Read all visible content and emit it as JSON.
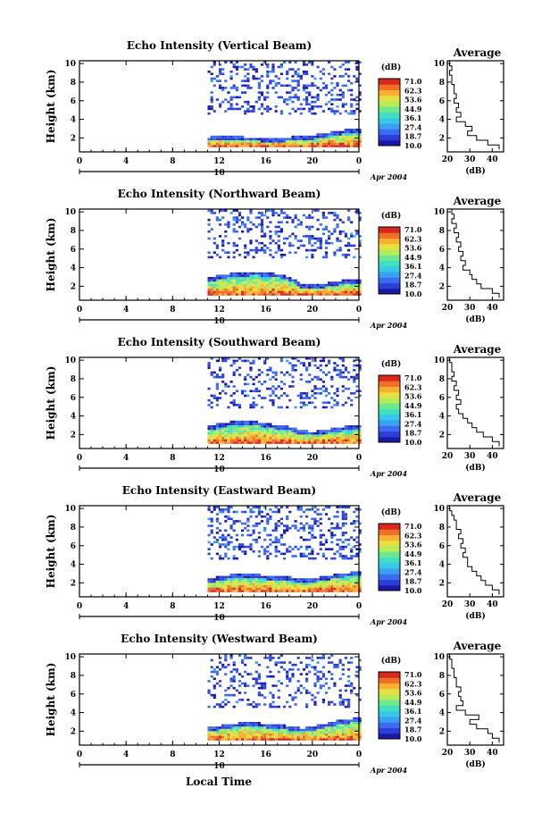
{
  "figure": {
    "xlabel": "Local Time"
  },
  "colorbar": {
    "unit": "(dB)",
    "ticks": [
      "71.0",
      "62.3",
      "53.6",
      "44.9",
      "36.1",
      "27.4",
      "18.7",
      "10.0"
    ],
    "colors": [
      "#1a1aa6",
      "#2d3fd8",
      "#3a6cf0",
      "#3aa0f0",
      "#36c8e8",
      "#3ee0c0",
      "#6ee890",
      "#b4ec5a",
      "#e8e040",
      "#f8b030",
      "#f07028",
      "#d8281e"
    ]
  },
  "chart_data": [
    {
      "type": "heatmap",
      "title": "Echo Intensity (Vertical Beam)",
      "ylabel": "Height (km)",
      "xlim": [
        0,
        24
      ],
      "ylim": [
        0.5,
        10.3
      ],
      "x_ticks": [
        "0",
        "4",
        "8",
        "12",
        "16",
        "20",
        "0"
      ],
      "date_label": "10",
      "date_suffix": "Apr 2004",
      "low_layer": {
        "x_start": 11,
        "x_end": 24,
        "top_km": [
          2.0,
          2.1,
          2.1,
          2.0,
          2.0,
          1.9,
          1.9,
          2.0,
          2.1,
          2.2,
          2.4,
          2.6,
          2.8,
          2.9
        ]
      },
      "upper_echoes": {
        "x_start": 11,
        "x_end": 24,
        "bottom_km": 4.5,
        "density": 0.55
      },
      "average_profile": {
        "title": "Average",
        "xlabel": "(dB)",
        "xlim": [
          20,
          45
        ],
        "ylim": [
          0.5,
          10.3
        ],
        "x_ticks": [
          "20",
          "30",
          "40"
        ],
        "y_ticks": [
          "2",
          "4",
          "6",
          "8",
          "10"
        ],
        "height_km": [
          10,
          9.5,
          9,
          8.5,
          8,
          7.5,
          7,
          6.5,
          6,
          5.5,
          5,
          4.5,
          4,
          3.5,
          3,
          2.5,
          2,
          1.5,
          1
        ],
        "value_db": [
          21,
          22,
          21,
          22,
          22,
          23,
          23,
          24,
          23,
          25,
          24,
          26,
          24,
          28,
          31,
          29,
          33,
          38,
          43
        ]
      }
    },
    {
      "type": "heatmap",
      "title": "Echo Intensity (Northward Beam)",
      "ylabel": "Height (km)",
      "xlim": [
        0,
        24
      ],
      "ylim": [
        0.5,
        10.3
      ],
      "x_ticks": [
        "0",
        "4",
        "8",
        "12",
        "16",
        "20",
        "0"
      ],
      "date_label": "10",
      "date_suffix": "Apr 2004",
      "low_layer": {
        "x_start": 11,
        "x_end": 24,
        "top_km": [
          2.8,
          3.1,
          3.3,
          3.4,
          3.5,
          3.4,
          3.2,
          2.9,
          2.0,
          2.1,
          2.2,
          2.4,
          2.6,
          2.7
        ]
      },
      "upper_echoes": {
        "x_start": 11,
        "x_end": 24,
        "bottom_km": 5.0,
        "density": 0.5
      },
      "average_profile": {
        "title": "Average",
        "xlabel": "(dB)",
        "xlim": [
          20,
          45
        ],
        "ylim": [
          0.5,
          10.3
        ],
        "x_ticks": [
          "20",
          "30",
          "40"
        ],
        "y_ticks": [
          "2",
          "4",
          "6",
          "8",
          "10"
        ],
        "height_km": [
          10,
          9.5,
          9,
          8.5,
          8,
          7.5,
          7,
          6.5,
          6,
          5.5,
          5,
          4.5,
          4,
          3.5,
          3,
          2.5,
          2,
          1.5,
          1
        ],
        "value_db": [
          22,
          23,
          22,
          24,
          23,
          25,
          24,
          26,
          25,
          27,
          26,
          28,
          27,
          30,
          31,
          33,
          35,
          40,
          43
        ]
      }
    },
    {
      "type": "heatmap",
      "title": "Echo Intensity (Southward Beam)",
      "ylabel": "Height (km)",
      "xlim": [
        0,
        24
      ],
      "ylim": [
        0.5,
        10.3
      ],
      "x_ticks": [
        "0",
        "4",
        "8",
        "12",
        "16",
        "20",
        "0"
      ],
      "date_label": "10",
      "date_suffix": "Apr 2004",
      "low_layer": {
        "x_start": 11,
        "x_end": 24,
        "top_km": [
          2.8,
          3.1,
          3.3,
          3.4,
          3.3,
          3.1,
          2.9,
          2.7,
          2.3,
          2.2,
          2.4,
          2.6,
          2.8,
          3.0
        ]
      },
      "upper_echoes": {
        "x_start": 11,
        "x_end": 24,
        "bottom_km": 4.8,
        "density": 0.5
      },
      "average_profile": {
        "title": "Average",
        "xlabel": "(dB)",
        "xlim": [
          20,
          45
        ],
        "ylim": [
          0.5,
          10.3
        ],
        "x_ticks": [
          "20",
          "30",
          "40"
        ],
        "y_ticks": [
          "2",
          "4",
          "6",
          "8",
          "10"
        ],
        "height_km": [
          10,
          9.5,
          9,
          8.5,
          8,
          7.5,
          7,
          6.5,
          6,
          5.5,
          5,
          4.5,
          4,
          3.5,
          3,
          2.5,
          2,
          1.5,
          1
        ],
        "value_db": [
          21,
          22,
          22,
          23,
          22,
          24,
          23,
          25,
          24,
          26,
          24,
          25,
          27,
          29,
          31,
          33,
          36,
          40,
          43
        ]
      }
    },
    {
      "type": "heatmap",
      "title": "Echo Intensity (Eastward Beam)",
      "ylabel": "Height (km)",
      "xlim": [
        0,
        24
      ],
      "ylim": [
        0.5,
        10.3
      ],
      "x_ticks": [
        "0",
        "4",
        "8",
        "12",
        "16",
        "20",
        "0"
      ],
      "date_label": "10",
      "date_suffix": "Apr 2004",
      "low_layer": {
        "x_start": 11,
        "x_end": 24,
        "top_km": [
          2.3,
          2.6,
          2.8,
          2.9,
          2.8,
          2.7,
          2.6,
          2.5,
          2.3,
          2.4,
          2.6,
          2.8,
          3.0,
          3.2
        ]
      },
      "upper_echoes": {
        "x_start": 11,
        "x_end": 24,
        "bottom_km": 4.5,
        "density": 0.55
      },
      "average_profile": {
        "title": "Average",
        "xlabel": "(dB)",
        "xlim": [
          20,
          45
        ],
        "ylim": [
          0.5,
          10.3
        ],
        "x_ticks": [
          "20",
          "30",
          "40"
        ],
        "y_ticks": [
          "2",
          "4",
          "6",
          "8",
          "10"
        ],
        "height_km": [
          10,
          9.5,
          9,
          8.5,
          8,
          7.5,
          7,
          6.5,
          6,
          5.5,
          5,
          4.5,
          4,
          3.5,
          3,
          2.5,
          2,
          1.5,
          1
        ],
        "value_db": [
          21,
          22,
          23,
          24,
          24,
          26,
          25,
          27,
          26,
          28,
          27,
          29,
          29,
          31,
          33,
          35,
          37,
          40,
          43
        ]
      }
    },
    {
      "type": "heatmap",
      "title": "Echo Intensity (Westward Beam)",
      "ylabel": "Height (km)",
      "xlim": [
        0,
        24
      ],
      "ylim": [
        0.5,
        10.3
      ],
      "x_ticks": [
        "0",
        "4",
        "8",
        "12",
        "16",
        "20",
        "0"
      ],
      "date_label": "10",
      "date_suffix": "Apr 2004",
      "low_layer": {
        "x_start": 11,
        "x_end": 24,
        "top_km": [
          2.3,
          2.5,
          2.7,
          2.8,
          2.8,
          2.7,
          2.6,
          2.4,
          2.2,
          2.4,
          2.7,
          3.0,
          3.2,
          3.4
        ]
      },
      "upper_echoes": {
        "x_start": 11,
        "x_end": 24,
        "bottom_km": 4.5,
        "density": 0.45
      },
      "average_profile": {
        "title": "Average",
        "xlabel": "(dB)",
        "xlim": [
          20,
          45
        ],
        "ylim": [
          0.5,
          10.3
        ],
        "x_ticks": [
          "20",
          "30",
          "40"
        ],
        "y_ticks": [
          "2",
          "4",
          "6",
          "8",
          "10"
        ],
        "height_km": [
          10,
          9.5,
          9,
          8.5,
          8,
          7.5,
          7,
          6.5,
          6,
          5.5,
          5,
          4.5,
          4,
          3.5,
          3,
          2.5,
          2,
          1.5,
          1
        ],
        "value_db": [
          21,
          22,
          22,
          23,
          23,
          24,
          24,
          26,
          25,
          26,
          27,
          24,
          28,
          34,
          30,
          33,
          38,
          40,
          43
        ]
      }
    }
  ]
}
